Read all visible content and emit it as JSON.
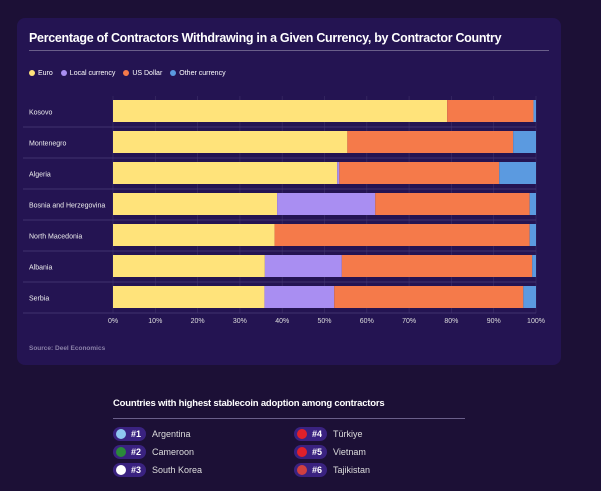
{
  "chart_data": {
    "type": "bar",
    "orientation": "horizontal",
    "stacked": true,
    "title": "Percentage of Contractors Withdrawing in a Given Currency, by Contractor Country",
    "categories": [
      "Kosovo",
      "Montenegro",
      "Algeria",
      "Bosnia and Herzegovina",
      "North Macedonia",
      "Albania",
      "Serbia"
    ],
    "series": [
      {
        "name": "Euro",
        "color": "#ffe37a",
        "values": [
          79.0,
          55.4,
          53.0,
          38.8,
          38.2,
          35.9,
          35.8
        ]
      },
      {
        "name": "Local currency",
        "color": "#a98ef2",
        "values": [
          0,
          0,
          0.5,
          23.2,
          0,
          18.2,
          16.5
        ]
      },
      {
        "name": "US Dollar",
        "color": "#f57a4a",
        "values": [
          20.4,
          39.2,
          37.8,
          36.5,
          60.3,
          45.0,
          44.7
        ]
      },
      {
        "name": "Other currency",
        "color": "#5b9ae0",
        "values": [
          0.6,
          5.4,
          8.7,
          1.5,
          1.5,
          0.9,
          3.0
        ]
      }
    ],
    "xticks": [
      "0%",
      "10%",
      "20%",
      "30%",
      "40%",
      "50%",
      "60%",
      "70%",
      "80%",
      "90%",
      "100%"
    ],
    "xlim": [
      0,
      100
    ],
    "grid": true,
    "legend": "top-left",
    "source": "Source: Deel Economics"
  },
  "ranking": {
    "title": "Countries with highest stablecoin adoption among contractors",
    "items": [
      {
        "rank": "#1",
        "country": "Argentina",
        "flag": "#8fc7f0"
      },
      {
        "rank": "#2",
        "country": "Cameroon",
        "flag": "#2a8a3a"
      },
      {
        "rank": "#3",
        "country": "South Korea",
        "flag": "#ffffff"
      },
      {
        "rank": "#4",
        "country": "Türkiye",
        "flag": "#e0202a"
      },
      {
        "rank": "#5",
        "country": "Vietnam",
        "flag": "#e0202a"
      },
      {
        "rank": "#6",
        "country": "Tajikistan",
        "flag": "#d04040"
      }
    ]
  }
}
